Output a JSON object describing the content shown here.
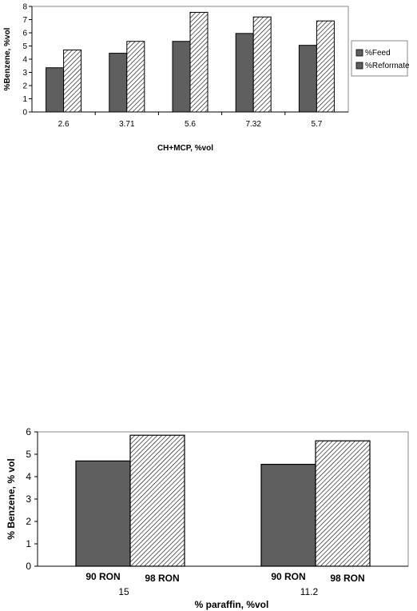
{
  "chart_data": [
    {
      "type": "bar",
      "categories": [
        "2.6",
        "3.71",
        "5.6",
        "7.32",
        "5.7"
      ],
      "series": [
        {
          "name": "%Feed",
          "values": [
            3.35,
            4.45,
            5.35,
            5.95,
            5.05
          ]
        },
        {
          "name": "%Reformate",
          "values": [
            4.7,
            5.35,
            7.55,
            7.2,
            6.9
          ]
        }
      ],
      "xlabel": "CH+MCP, %vol",
      "ylabel": "%Benzene, %vol",
      "ylim": [
        0,
        8
      ],
      "yticks": [
        "0",
        "1",
        "2",
        "3",
        "4",
        "5",
        "6",
        "7",
        "8"
      ],
      "legend": "right",
      "grid": false,
      "colors": {
        "feed": "#5f5f5f",
        "reformate": "hatched"
      }
    },
    {
      "type": "bar",
      "categories": [
        "15",
        "11.2"
      ],
      "bar_labels": [
        [
          "90 RON",
          "98 RON"
        ],
        [
          "90 RON",
          "98 RON"
        ]
      ],
      "series": [
        {
          "values": [
            4.7,
            4.55
          ]
        },
        {
          "values": [
            5.85,
            5.6
          ]
        }
      ],
      "xlabel": "% paraffin, %vol",
      "ylabel": "% Benzene, % vol",
      "ylim": [
        0,
        6
      ],
      "yticks": [
        "0",
        "1",
        "2",
        "3",
        "4",
        "5",
        "6"
      ],
      "legend": "none",
      "grid": false,
      "colors": {
        "first": "#5f5f5f",
        "second": "hatched"
      }
    }
  ]
}
